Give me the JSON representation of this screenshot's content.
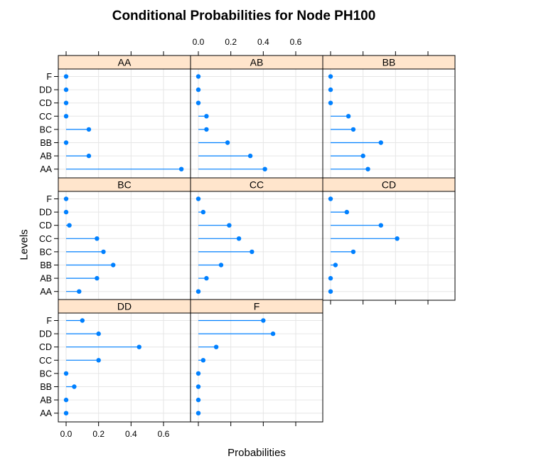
{
  "chart_data": {
    "type": "dotplot",
    "title": "Conditional Probabilities for Node PH100",
    "xlabel": "Probabilities",
    "ylabel": "Levels",
    "xlim": [
      -0.05,
      0.75
    ],
    "xticks": [
      0.0,
      0.2,
      0.4,
      0.6
    ],
    "xtick_labels": [
      "0.0",
      "0.2",
      "0.4",
      "0.6"
    ],
    "levels": [
      "AA",
      "AB",
      "BB",
      "BC",
      "CC",
      "CD",
      "DD",
      "F"
    ],
    "grid": true,
    "colors": {
      "point": "#0080ff",
      "strip_bg": "#ffe5cc",
      "grid": "#e6e6e6"
    },
    "panels": [
      {
        "name": "AA",
        "values": [
          0.71,
          0.14,
          0.0,
          0.14,
          0.0,
          0.0,
          0.0,
          0.0
        ]
      },
      {
        "name": "AB",
        "values": [
          0.41,
          0.32,
          0.18,
          0.05,
          0.05,
          0.0,
          0.0,
          0.0
        ]
      },
      {
        "name": "BB",
        "values": [
          0.23,
          0.2,
          0.31,
          0.14,
          0.11,
          0.0,
          0.0,
          0.0
        ]
      },
      {
        "name": "BC",
        "values": [
          0.08,
          0.19,
          0.29,
          0.23,
          0.19,
          0.02,
          0.0,
          0.0
        ]
      },
      {
        "name": "CC",
        "values": [
          0.0,
          0.05,
          0.14,
          0.33,
          0.25,
          0.19,
          0.03,
          0.0
        ]
      },
      {
        "name": "CD",
        "values": [
          0.0,
          0.0,
          0.03,
          0.14,
          0.41,
          0.31,
          0.1,
          0.0
        ]
      },
      {
        "name": "DD",
        "values": [
          0.0,
          0.0,
          0.05,
          0.0,
          0.2,
          0.45,
          0.2,
          0.1
        ]
      },
      {
        "name": "F",
        "values": [
          0.0,
          0.0,
          0.0,
          0.0,
          0.03,
          0.11,
          0.46,
          0.4
        ]
      }
    ]
  }
}
